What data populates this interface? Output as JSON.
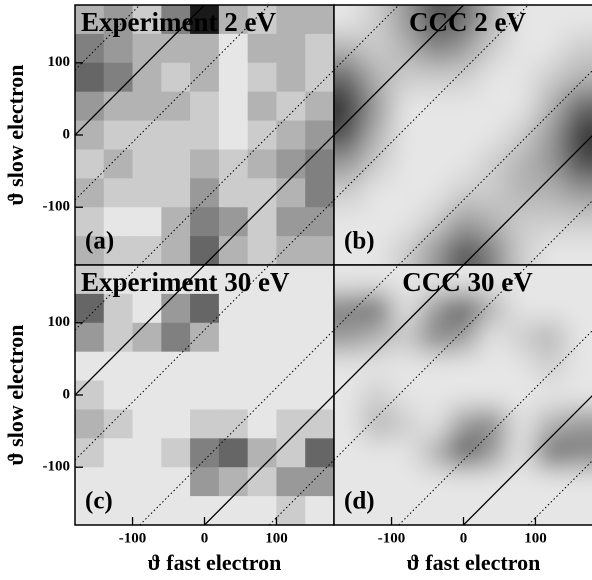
{
  "chart_data": [
    {
      "type": "heatmap",
      "title": "Experiment 2 eV",
      "panel_label": "(a)",
      "ylabel": "ϑ slow electron",
      "smooth": false,
      "xlim": [
        -180,
        180
      ],
      "ylim": [
        -180,
        180
      ],
      "yticks": [
        -100,
        0,
        100
      ],
      "x": [
        -160,
        -120,
        -80,
        -40,
        0,
        40,
        80,
        120,
        160
      ],
      "y": [
        160,
        120,
        80,
        40,
        0,
        -40,
        -80,
        -120,
        -160
      ],
      "solid_lines": [
        180,
        -180
      ],
      "dotted_lines": [
        -270,
        -90,
        90,
        270
      ],
      "z": [
        [
          0.3,
          0.4,
          0.2,
          0.5,
          0.9,
          0.3,
          0.2,
          0.3,
          0.3
        ],
        [
          0.5,
          0.4,
          0.3,
          0.3,
          0.3,
          0.1,
          0.3,
          0.3,
          0.2
        ],
        [
          0.6,
          0.5,
          0.3,
          0.2,
          0.3,
          0.1,
          0.2,
          0.3,
          0.2
        ],
        [
          0.4,
          0.3,
          0.3,
          0.3,
          0.2,
          0.1,
          0.3,
          0.2,
          0.3
        ],
        [
          0.3,
          0.2,
          0.2,
          0.2,
          0.2,
          0.1,
          0.2,
          0.3,
          0.4
        ],
        [
          0.2,
          0.3,
          0.2,
          0.2,
          0.3,
          0.2,
          0.3,
          0.4,
          0.5
        ],
        [
          0.3,
          0.2,
          0.2,
          0.2,
          0.4,
          0.2,
          0.2,
          0.3,
          0.5
        ],
        [
          0.2,
          0.1,
          0.1,
          0.3,
          0.5,
          0.4,
          0.2,
          0.4,
          0.4
        ],
        [
          0.3,
          0.2,
          0.2,
          0.3,
          0.6,
          0.3,
          0.2,
          0.3,
          0.3
        ]
      ]
    },
    {
      "type": "heatmap",
      "title": "CCC 2 eV",
      "panel_label": "(b)",
      "smooth": true,
      "xlim": [
        -180,
        180
      ],
      "ylim": [
        -180,
        180
      ],
      "x": [
        -160,
        -120,
        -80,
        -40,
        0,
        40,
        80,
        120,
        160
      ],
      "y": [
        160,
        120,
        80,
        40,
        0,
        -40,
        -80,
        -120,
        -160
      ],
      "solid_lines": [
        180,
        -180
      ],
      "dotted_lines": [
        -270,
        -90,
        90,
        270
      ],
      "z": [
        [
          0.1,
          0.2,
          0.4,
          0.7,
          0.6,
          0.3,
          0.1,
          0.1,
          0.1
        ],
        [
          0.3,
          0.2,
          0.3,
          0.5,
          0.4,
          0.2,
          0.1,
          0.1,
          0.2
        ],
        [
          0.6,
          0.3,
          0.2,
          0.2,
          0.2,
          0.1,
          0.1,
          0.2,
          0.3
        ],
        [
          0.8,
          0.4,
          0.1,
          0.1,
          0.1,
          0.1,
          0.1,
          0.3,
          0.6
        ],
        [
          0.7,
          0.3,
          0.1,
          0.1,
          0.1,
          0.1,
          0.2,
          0.4,
          0.8
        ],
        [
          0.4,
          0.2,
          0.1,
          0.1,
          0.1,
          0.2,
          0.3,
          0.4,
          0.7
        ],
        [
          0.2,
          0.1,
          0.1,
          0.1,
          0.2,
          0.2,
          0.3,
          0.3,
          0.4
        ],
        [
          0.1,
          0.1,
          0.1,
          0.2,
          0.4,
          0.3,
          0.2,
          0.2,
          0.2
        ],
        [
          0.1,
          0.1,
          0.2,
          0.4,
          0.7,
          0.5,
          0.2,
          0.1,
          0.1
        ]
      ]
    },
    {
      "type": "heatmap",
      "title": "Experiment 30 eV",
      "panel_label": "(c)",
      "ylabel": "ϑ slow electron",
      "xlabel": "ϑ fast electron",
      "smooth": false,
      "xlim": [
        -180,
        180
      ],
      "ylim": [
        -180,
        180
      ],
      "xticks": [
        -100,
        0,
        100
      ],
      "yticks": [
        -100,
        0,
        100
      ],
      "x": [
        -160,
        -120,
        -80,
        -40,
        0,
        40,
        80,
        120,
        160
      ],
      "y": [
        160,
        120,
        80,
        40,
        0,
        -40,
        -80,
        -120,
        -160
      ],
      "solid_lines": [
        180,
        -180
      ],
      "dotted_lines": [
        -270,
        -90,
        90,
        270
      ],
      "z": [
        [
          0.2,
          0.1,
          0.1,
          0.1,
          0.1,
          0.1,
          0.1,
          0.1,
          0.1
        ],
        [
          0.6,
          0.2,
          0.1,
          0.4,
          0.6,
          0.1,
          0.1,
          0.1,
          0.1
        ],
        [
          0.4,
          0.2,
          0.3,
          0.5,
          0.3,
          0.1,
          0.1,
          0.1,
          0.1
        ],
        [
          0.1,
          0.1,
          0.1,
          0.1,
          0.1,
          0.1,
          0.1,
          0.1,
          0.1
        ],
        [
          0.2,
          0.1,
          0.1,
          0.1,
          0.1,
          0.1,
          0.1,
          0.1,
          0.1
        ],
        [
          0.3,
          0.2,
          0.1,
          0.1,
          0.2,
          0.2,
          0.1,
          0.2,
          0.2
        ],
        [
          0.2,
          0.1,
          0.1,
          0.2,
          0.5,
          0.6,
          0.3,
          0.2,
          0.6
        ],
        [
          0.1,
          0.1,
          0.1,
          0.1,
          0.4,
          0.3,
          0.2,
          0.4,
          0.4
        ],
        [
          0.1,
          0.1,
          0.1,
          0.1,
          0.1,
          0.1,
          0.1,
          0.2,
          0.1
        ]
      ]
    },
    {
      "type": "heatmap",
      "title": "CCC 30 eV",
      "panel_label": "(d)",
      "xlabel": "ϑ fast electron",
      "smooth": true,
      "xlim": [
        -180,
        180
      ],
      "ylim": [
        -180,
        180
      ],
      "xticks": [
        -100,
        0,
        100
      ],
      "x": [
        -160,
        -120,
        -80,
        -40,
        0,
        40,
        80,
        120,
        160
      ],
      "y": [
        160,
        120,
        80,
        40,
        0,
        -40,
        -80,
        -120,
        -160
      ],
      "solid_lines": [
        180,
        -180
      ],
      "dotted_lines": [
        -270,
        -90,
        90,
        270
      ],
      "z": [
        [
          0.1,
          0.1,
          0.1,
          0.1,
          0.1,
          0.1,
          0.1,
          0.1,
          0.1
        ],
        [
          0.5,
          0.6,
          0.1,
          0.4,
          0.7,
          0.3,
          0.1,
          0.1,
          0.1
        ],
        [
          0.4,
          0.3,
          0.2,
          0.5,
          0.4,
          0.1,
          0.2,
          0.3,
          0.1
        ],
        [
          0.1,
          0.1,
          0.1,
          0.1,
          0.1,
          0.1,
          0.1,
          0.2,
          0.1
        ],
        [
          0.1,
          0.2,
          0.1,
          0.1,
          0.1,
          0.1,
          0.1,
          0.1,
          0.1
        ],
        [
          0.1,
          0.3,
          0.2,
          0.1,
          0.4,
          0.5,
          0.1,
          0.3,
          0.4
        ],
        [
          0.1,
          0.1,
          0.1,
          0.3,
          0.7,
          0.4,
          0.1,
          0.6,
          0.5
        ],
        [
          0.1,
          0.1,
          0.1,
          0.1,
          0.1,
          0.1,
          0.1,
          0.1,
          0.1
        ],
        [
          0.1,
          0.1,
          0.1,
          0.1,
          0.1,
          0.1,
          0.1,
          0.1,
          0.1
        ]
      ]
    }
  ]
}
